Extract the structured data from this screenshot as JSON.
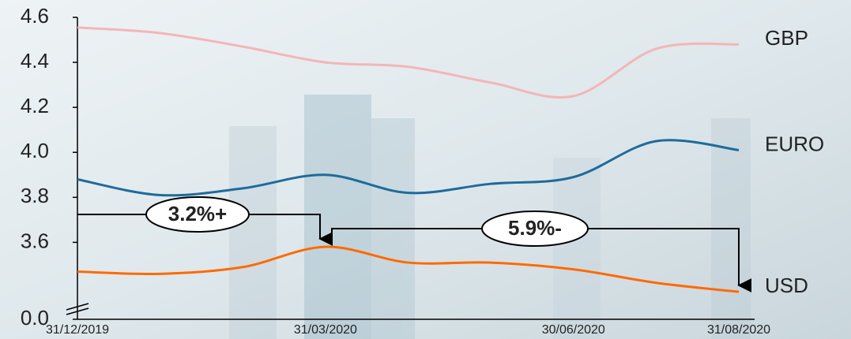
{
  "chart_data": {
    "type": "line",
    "categories": [
      "31/12/2019",
      null,
      null,
      "31/03/2020",
      null,
      null,
      "30/06/2020",
      null,
      "31/08/2020"
    ],
    "series": [
      {
        "name": "GBP",
        "color": "#f4b5b8",
        "values": [
          4.555,
          4.53,
          4.47,
          4.4,
          4.38,
          4.31,
          4.25,
          4.46,
          4.48
        ]
      },
      {
        "name": "EURO",
        "color": "#1f6b9b",
        "values": [
          3.88,
          3.81,
          3.84,
          3.9,
          3.82,
          3.86,
          3.89,
          4.05,
          4.01
        ]
      },
      {
        "name": "USD",
        "color": "#ff6a00",
        "values": [
          3.47,
          3.46,
          3.49,
          3.58,
          3.51,
          3.51,
          3.48,
          3.42,
          3.38
        ]
      }
    ],
    "ylim": [
      0,
      4.6
    ],
    "axis_break": [
      0,
      3.3
    ],
    "yticks": [
      {
        "value": 0,
        "label": "0.0"
      },
      3.6,
      3.8,
      {
        "value": 4,
        "label": "4.0"
      },
      4.2,
      4.4,
      4.6
    ],
    "annotations": [
      "3.2%+",
      "5.9%-"
    ]
  }
}
